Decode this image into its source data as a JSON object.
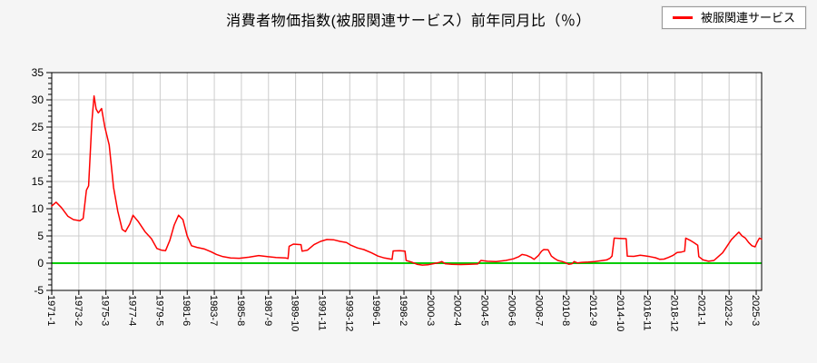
{
  "page": {
    "background": "#f5f5f5"
  },
  "title": "消費者物価指数(被服関連サービス）前年同月比（％）",
  "legend": {
    "items": [
      {
        "label": "被服関連サービス",
        "color": "#ff0000"
      }
    ]
  },
  "chart_data": {
    "type": "line",
    "title": "消費者物価指数(被服関連サービス）前年同月比（％）",
    "xlabel": "",
    "ylabel": "%",
    "ylim": [
      -5,
      35
    ],
    "y_tick_step": 5,
    "y_minor_step": 1,
    "grid": true,
    "grid_color": "#cccccc",
    "border_color": "#000000",
    "plot_bg": "#ffffff",
    "zero_line_color": "#00cc00",
    "x_start": "1971-1",
    "x_end": "2025-8",
    "x_tick_interval_months": 25,
    "x_tick_labels": [
      "1971-1",
      "1973-2",
      "1975-3",
      "1977-4",
      "1979-5",
      "1981-6",
      "1983-7",
      "1985-8",
      "1987-9",
      "1989-10",
      "1991-11",
      "1993-12",
      "1996-1",
      "1998-2",
      "2000-3",
      "2002-4",
      "2004-5",
      "2006-6",
      "2008-7",
      "2010-8",
      "2012-9",
      "2014-10",
      "2016-11",
      "2018-12",
      "2021-1",
      "2023-2",
      "2025-3"
    ],
    "series": [
      {
        "name": "被服関連サービス",
        "color": "#ff0000",
        "points": [
          [
            "1971-1",
            10.5
          ],
          [
            "1971-5",
            11.2
          ],
          [
            "1971-10",
            10.2
          ],
          [
            "1972-4",
            8.6
          ],
          [
            "1972-9",
            8.0
          ],
          [
            "1973-3",
            7.8
          ],
          [
            "1973-6",
            8.2
          ],
          [
            "1973-9",
            13.4
          ],
          [
            "1973-11",
            14.2
          ],
          [
            "1974-2",
            26.0
          ],
          [
            "1974-4",
            30.7
          ],
          [
            "1974-6",
            28.3
          ],
          [
            "1974-8",
            27.6
          ],
          [
            "1974-11",
            28.4
          ],
          [
            "1975-2",
            25.0
          ],
          [
            "1975-6",
            21.7
          ],
          [
            "1975-10",
            13.9
          ],
          [
            "1976-2",
            9.5
          ],
          [
            "1976-6",
            6.2
          ],
          [
            "1976-9",
            5.8
          ],
          [
            "1977-1",
            7.2
          ],
          [
            "1977-4",
            8.8
          ],
          [
            "1977-9",
            7.6
          ],
          [
            "1978-3",
            5.8
          ],
          [
            "1978-9",
            4.5
          ],
          [
            "1979-2",
            2.7
          ],
          [
            "1979-6",
            2.4
          ],
          [
            "1979-10",
            2.3
          ],
          [
            "1980-2",
            4.2
          ],
          [
            "1980-6",
            7.0
          ],
          [
            "1980-10",
            8.8
          ],
          [
            "1981-2",
            8.0
          ],
          [
            "1981-6",
            5.0
          ],
          [
            "1981-10",
            3.2
          ],
          [
            "1982-3",
            2.9
          ],
          [
            "1982-10",
            2.6
          ],
          [
            "1983-4",
            2.1
          ],
          [
            "1983-9",
            1.6
          ],
          [
            "1984-3",
            1.2
          ],
          [
            "1984-10",
            0.95
          ],
          [
            "1985-6",
            0.9
          ],
          [
            "1986-3",
            1.1
          ],
          [
            "1986-12",
            1.4
          ],
          [
            "1987-8",
            1.2
          ],
          [
            "1988-4",
            1.05
          ],
          [
            "1989-1",
            0.95
          ],
          [
            "1989-3",
            0.85
          ],
          [
            "1989-4",
            3.1
          ],
          [
            "1989-8",
            3.5
          ],
          [
            "1990-3",
            3.4
          ],
          [
            "1990-4",
            2.2
          ],
          [
            "1990-9",
            2.4
          ],
          [
            "1991-3",
            3.4
          ],
          [
            "1991-9",
            4.0
          ],
          [
            "1992-3",
            4.35
          ],
          [
            "1992-9",
            4.3
          ],
          [
            "1993-3",
            4.0
          ],
          [
            "1993-9",
            3.8
          ],
          [
            "1994-1",
            3.3
          ],
          [
            "1994-7",
            2.8
          ],
          [
            "1995-1",
            2.5
          ],
          [
            "1995-8",
            1.9
          ],
          [
            "1996-2",
            1.3
          ],
          [
            "1996-8",
            0.95
          ],
          [
            "1997-3",
            0.7
          ],
          [
            "1997-4",
            2.25
          ],
          [
            "1997-10",
            2.3
          ],
          [
            "1998-3",
            2.2
          ],
          [
            "1998-4",
            0.5
          ],
          [
            "1998-9",
            0.2
          ],
          [
            "1999-2",
            -0.2
          ],
          [
            "1999-7",
            -0.35
          ],
          [
            "1999-12",
            -0.3
          ],
          [
            "2000-5",
            -0.1
          ],
          [
            "2000-10",
            0.1
          ],
          [
            "2001-1",
            0.3
          ],
          [
            "2001-4",
            -0.1
          ],
          [
            "2001-10",
            -0.2
          ],
          [
            "2002-6",
            -0.25
          ],
          [
            "2003-2",
            -0.2
          ],
          [
            "2003-10",
            -0.15
          ],
          [
            "2004-1",
            0.5
          ],
          [
            "2004-7",
            0.35
          ],
          [
            "2005-3",
            0.3
          ],
          [
            "2005-12",
            0.5
          ],
          [
            "2006-7",
            0.8
          ],
          [
            "2006-12",
            1.2
          ],
          [
            "2007-3",
            1.6
          ],
          [
            "2007-7",
            1.45
          ],
          [
            "2007-11",
            1.1
          ],
          [
            "2008-2",
            0.7
          ],
          [
            "2008-6",
            1.4
          ],
          [
            "2008-9",
            2.2
          ],
          [
            "2008-11",
            2.5
          ],
          [
            "2009-3",
            2.45
          ],
          [
            "2009-6",
            1.3
          ],
          [
            "2009-9",
            0.85
          ],
          [
            "2009-12",
            0.5
          ],
          [
            "2010-4",
            0.3
          ],
          [
            "2010-7",
            0.1
          ],
          [
            "2010-10",
            -0.2
          ],
          [
            "2011-1",
            -0.1
          ],
          [
            "2011-3",
            0.3
          ],
          [
            "2011-6",
            0.05
          ],
          [
            "2011-10",
            0.15
          ],
          [
            "2012-4",
            0.2
          ],
          [
            "2012-10",
            0.3
          ],
          [
            "2013-4",
            0.45
          ],
          [
            "2013-9",
            0.6
          ],
          [
            "2013-12",
            0.9
          ],
          [
            "2014-2",
            1.3
          ],
          [
            "2014-4",
            4.6
          ],
          [
            "2014-9",
            4.55
          ],
          [
            "2015-3",
            4.5
          ],
          [
            "2015-4",
            1.3
          ],
          [
            "2015-10",
            1.25
          ],
          [
            "2016-4",
            1.45
          ],
          [
            "2016-8",
            1.35
          ],
          [
            "2017-1",
            1.2
          ],
          [
            "2017-6",
            1.0
          ],
          [
            "2017-10",
            0.7
          ],
          [
            "2018-2",
            0.75
          ],
          [
            "2018-6",
            1.05
          ],
          [
            "2018-10",
            1.4
          ],
          [
            "2019-2",
            1.95
          ],
          [
            "2019-6",
            2.05
          ],
          [
            "2019-9",
            2.2
          ],
          [
            "2019-10",
            4.6
          ],
          [
            "2020-2",
            4.2
          ],
          [
            "2020-6",
            3.7
          ],
          [
            "2020-9",
            3.3
          ],
          [
            "2020-10",
            1.2
          ],
          [
            "2021-2",
            0.6
          ],
          [
            "2021-7",
            0.35
          ],
          [
            "2021-12",
            0.5
          ],
          [
            "2022-4",
            1.2
          ],
          [
            "2022-8",
            1.9
          ],
          [
            "2022-12",
            3.1
          ],
          [
            "2023-4",
            4.3
          ],
          [
            "2023-8",
            5.1
          ],
          [
            "2023-11",
            5.7
          ],
          [
            "2024-2",
            5.0
          ],
          [
            "2024-5",
            4.6
          ],
          [
            "2024-8",
            3.8
          ],
          [
            "2024-11",
            3.2
          ],
          [
            "2025-2",
            3.0
          ],
          [
            "2025-4",
            3.9
          ],
          [
            "2025-6",
            4.6
          ],
          [
            "2025-8",
            4.4
          ]
        ]
      }
    ]
  }
}
